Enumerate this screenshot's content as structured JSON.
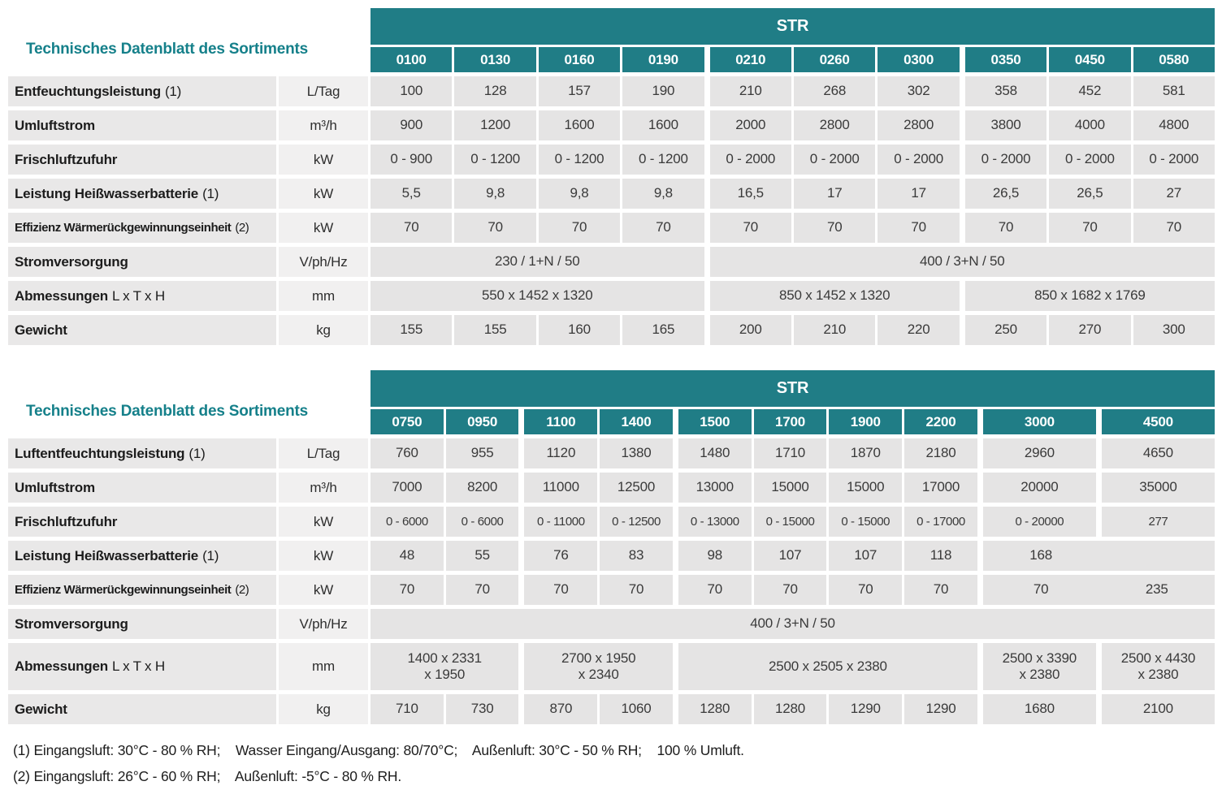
{
  "accent_color": "#207d86",
  "section_title": "Technisches Datenblatt des Sortiments",
  "table1": {
    "group_header": "STR",
    "columns": [
      "0100",
      "0130",
      "0160",
      "0190",
      "0210",
      "0260",
      "0300",
      "0350",
      "0450",
      "0580"
    ],
    "rows": [
      {
        "label": "Entfeuchtungsleistung",
        "suffix": "(1)",
        "unit": "L/Tag",
        "cells": [
          "100",
          "128",
          "157",
          "190",
          "210",
          "268",
          "302",
          "358",
          "452",
          "581"
        ]
      },
      {
        "label": "Umluftstrom",
        "suffix": "",
        "unit": "m³/h",
        "cells": [
          "900",
          "1200",
          "1600",
          "1600",
          "2000",
          "2800",
          "2800",
          "3800",
          "4000",
          "4800"
        ]
      },
      {
        "label": "Frischluftzufuhr",
        "suffix": "",
        "unit": "kW",
        "cells": [
          "0 - 900",
          "0 - 1200",
          "0 - 1200",
          "0 - 1200",
          "0 - 2000",
          "0 - 2000",
          "0 - 2000",
          "0 - 2000",
          "0 - 2000",
          "0 - 2000"
        ]
      },
      {
        "label": "Leistung Heißwasserbatterie",
        "suffix": "(1)",
        "unit": "kW",
        "cells": [
          "5,5",
          "9,8",
          "9,8",
          "9,8",
          "16,5",
          "17",
          "17",
          "26,5",
          "26,5",
          "27"
        ]
      },
      {
        "label": "Effizienz Wärmerückgewinnungseinheit",
        "suffix": "(2)",
        "unit": "kW",
        "cells": [
          "70",
          "70",
          "70",
          "70",
          "70",
          "70",
          "70",
          "70",
          "70",
          "70"
        ]
      },
      {
        "label": "Stromversorgung",
        "suffix": "",
        "unit": "V/ph/Hz",
        "cells": [
          {
            "t": "230 / 1+N / 50",
            "s": 4
          },
          {
            "t": "400 / 3+N / 50",
            "s": 6
          }
        ]
      },
      {
        "label": "Abmessungen",
        "suffix": "L x T x H",
        "unit": "mm",
        "cells": [
          {
            "t": "550 x 1452 x 1320",
            "s": 4
          },
          {
            "t": "850 x 1452 x 1320",
            "s": 3
          },
          {
            "t": "850 x 1682 x 1769",
            "s": 3
          }
        ]
      },
      {
        "label": "Gewicht",
        "suffix": "",
        "unit": "kg",
        "cells": [
          "155",
          "155",
          "160",
          "165",
          "200",
          "210",
          "220",
          "250",
          "270",
          "300"
        ]
      }
    ]
  },
  "table2": {
    "group_header": "STR",
    "columns": [
      "0750",
      "0950",
      "1100",
      "1400",
      "1500",
      "1700",
      "1900",
      "2200",
      "3000",
      "4500"
    ],
    "rows": [
      {
        "label": "Luftentfeuchtungsleistung",
        "suffix": "(1)",
        "unit": "L/Tag",
        "cells": [
          "760",
          "955",
          "1120",
          "1380",
          "1480",
          "1710",
          "1870",
          "2180",
          "2960",
          "4650"
        ]
      },
      {
        "label": "Umluftstrom",
        "suffix": "",
        "unit": "m³/h",
        "cells": [
          "7000",
          "8200",
          "11000",
          "12500",
          "13000",
          "15000",
          "15000",
          "17000",
          "20000",
          "35000"
        ]
      },
      {
        "label": "Frischluftzufuhr",
        "suffix": "",
        "unit": "kW",
        "cells": [
          "0 - 6000",
          "0 - 6000",
          "0 - 11000",
          "0 - 12500",
          "0 - 13000",
          "0 - 15000",
          "0 - 15000",
          "0 - 17000",
          "0 - 20000",
          "277"
        ]
      },
      {
        "label": "Leistung Heißwasserbatterie",
        "suffix": "(1)",
        "unit": "kW",
        "cells": [
          "48",
          "55",
          "76",
          "83",
          "98",
          "107",
          "107",
          "118",
          {
            "halves": [
              "168",
              ""
            ],
            "s": 2
          }
        ]
      },
      {
        "label": "Effizienz Wärmerückgewinnungseinheit",
        "suffix": "(2)",
        "unit": "kW",
        "cells": [
          "70",
          "70",
          "70",
          "70",
          "70",
          "70",
          "70",
          "70",
          {
            "halves": [
              "70",
              "235"
            ],
            "s": 2
          }
        ]
      },
      {
        "label": "Stromversorgung",
        "suffix": "",
        "unit": "V/ph/Hz",
        "cells": [
          {
            "t": "400 / 3+N / 50",
            "s": 10
          }
        ]
      },
      {
        "label": "Abmessungen",
        "suffix": "L x T x H",
        "unit": "mm",
        "cells": [
          {
            "t": "1400 x 2331\nx 1950",
            "s": 2
          },
          {
            "t": "2700 x 1950\nx 2340",
            "s": 2
          },
          {
            "t": "2500 x 2505 x 2380",
            "s": 4
          },
          {
            "t": "2500 x 3390\nx 2380",
            "s": 1
          },
          {
            "t": "2500 x 4430\nx 2380",
            "s": 1
          }
        ]
      },
      {
        "label": "Gewicht",
        "suffix": "",
        "unit": "kg",
        "cells": [
          "710",
          "730",
          "870",
          "1060",
          "1280",
          "1280",
          "1290",
          "1290",
          "1680",
          "2100"
        ]
      }
    ]
  },
  "footnotes": [
    "(1) Eingangsluft: 30°C - 80 % RH;    Wasser Eingang/Ausgang: 80/70°C;    Außenluft: 30°C - 50 % RH;    100 % Umluft.",
    "(2) Eingangsluft: 26°C - 60 % RH;    Außenluft: -5°C - 80 % RH."
  ]
}
